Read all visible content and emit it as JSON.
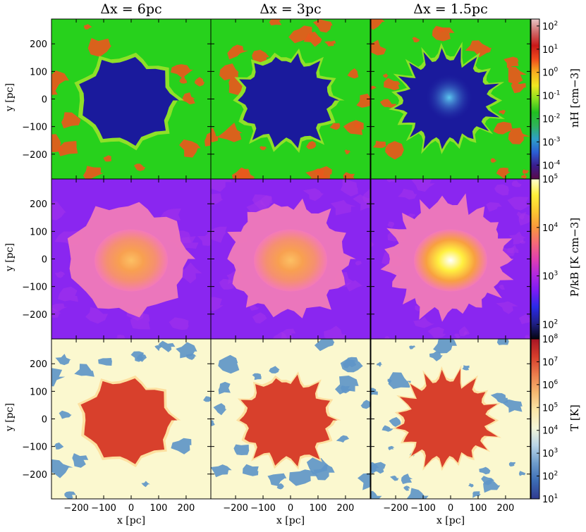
{
  "columns": [
    {
      "title": "Δx = 6pc"
    },
    {
      "title": "Δx = 3pc"
    },
    {
      "title": "Δx = 1.5pc"
    }
  ],
  "axes": {
    "ylabel": "y [pc]",
    "xlabel": "x [pc]",
    "xticks": [
      "−200",
      "−100",
      "0",
      "100",
      "200"
    ],
    "yticks": [
      "200",
      "100",
      "0",
      "−100",
      "−200"
    ]
  },
  "rows": [
    {
      "quantity": "density",
      "colorbar_label": "n_H [cm^-3]",
      "colorbar_label_display": "nH [cm−3]",
      "colormap": [
        "#5a0a4a",
        "#3a1c8c",
        "#2b5ed4",
        "#2ea0c8",
        "#2fb35a",
        "#20c020",
        "#8ae020",
        "#f0e820",
        "#f8b020",
        "#f04a1c",
        "#c81818",
        "#d06868",
        "#e8c8c8"
      ],
      "ticks": [
        {
          "base": "10",
          "exp": "2"
        },
        {
          "base": "10",
          "exp": "1"
        },
        {
          "base": "10",
          "exp": "0"
        },
        {
          "base": "10",
          "exp": "-1"
        },
        {
          "base": "10",
          "exp": "-2"
        },
        {
          "base": "10",
          "exp": "-3"
        },
        {
          "base": "10",
          "exp": "-4"
        }
      ],
      "log_range": [
        -4.6,
        2.3
      ],
      "background_color": "#27d11c",
      "bubble_color": "#1a1a9c",
      "clump_color": "#e8581c"
    },
    {
      "quantity": "pressure",
      "colorbar_label": "P/k_B [K cm^-3]",
      "colorbar_label_display": "P/kB [K cm−3]",
      "colormap": [
        "#050510",
        "#20208a",
        "#2a2ae8",
        "#7a1cf5",
        "#b028e0",
        "#e040b0",
        "#f56a78",
        "#f8983c",
        "#fcc830",
        "#fff03a",
        "#ffffd0"
      ],
      "ticks": [
        {
          "base": "10",
          "exp": "5"
        },
        {
          "base": "10",
          "exp": "4"
        },
        {
          "base": "10",
          "exp": "3"
        },
        {
          "base": "10",
          "exp": "2"
        }
      ],
      "log_range": [
        1.7,
        5.0
      ],
      "background_color": "#8a26f0",
      "bubble_color": "#f47ab8",
      "clump_color": "#a838e8"
    },
    {
      "quantity": "temperature",
      "colorbar_label": "T [K]",
      "colorbar_label_display": "T [K]",
      "colormap": [
        "#303a90",
        "#3c6cb4",
        "#6e9ccc",
        "#b8d4e8",
        "#f4f6d8",
        "#fbe6a8",
        "#f6b870",
        "#ec7c4c",
        "#d63e2c",
        "#a81424"
      ],
      "ticks": [
        {
          "base": "10",
          "exp": "8"
        },
        {
          "base": "10",
          "exp": "7"
        },
        {
          "base": "10",
          "exp": "6"
        },
        {
          "base": "10",
          "exp": "5"
        },
        {
          "base": "10",
          "exp": "4"
        },
        {
          "base": "10",
          "exp": "3"
        },
        {
          "base": "10",
          "exp": "2"
        },
        {
          "base": "10",
          "exp": "1"
        }
      ],
      "log_range": [
        1.0,
        8.0
      ],
      "background_color": "#fbf8cf",
      "bubble_color": "#d8402c",
      "clump_color": "#5f96c8"
    }
  ],
  "chart_data": {
    "type": "heatmap",
    "panels": "3x3 image grid (resolution by column, quantity by row)",
    "x_range_pc": [
      -290,
      290
    ],
    "y_range_pc": [
      -290,
      290
    ],
    "xticks_pc": [
      -200,
      -100,
      0,
      100,
      200
    ],
    "yticks_pc": [
      200,
      100,
      0,
      -100,
      -200
    ],
    "column_titles": [
      "Δx = 6pc",
      "Δx = 3pc",
      "Δx = 1.5pc"
    ],
    "row_quantities": [
      "n_H [cm^-3]",
      "P/k_B [K cm^-3]",
      "T [K]"
    ]
  }
}
